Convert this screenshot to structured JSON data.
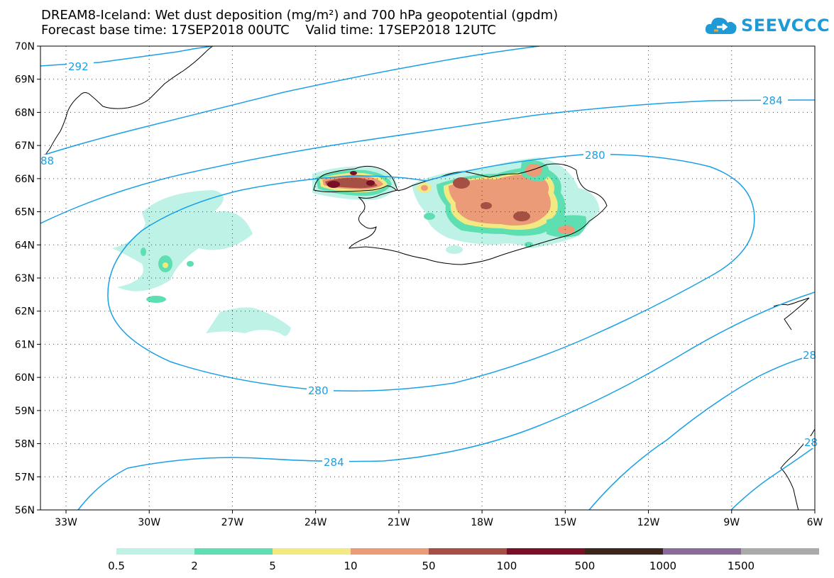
{
  "title": {
    "line1": "DREAM8-Iceland: Wet dust deposition (mg/m²) and 700 hPa geopotential (gpdm)",
    "line2": "Forecast base time: 17SEP2018 00UTC    Valid time: 17SEP2018 12UTC"
  },
  "logo": {
    "text": "SEEVCCC",
    "icon": "cloud-icon",
    "color": "#1e9bd7"
  },
  "map": {
    "lat_labels": [
      "70N",
      "69N",
      "68N",
      "67N",
      "66N",
      "65N",
      "64N",
      "63N",
      "62N",
      "61N",
      "60N",
      "59N",
      "58N",
      "57N",
      "56N"
    ],
    "lon_labels": [
      "33W",
      "30W",
      "27W",
      "24W",
      "21W",
      "18W",
      "15W",
      "12W",
      "9W",
      "6W"
    ],
    "contour_color": "#1aa0e6",
    "contour_labels": [
      "292",
      "88",
      "284",
      "280",
      "280",
      "284",
      "28",
      "28"
    ]
  },
  "colorbar": {
    "colors": [
      "#bff2e7",
      "#5ddfb2",
      "#f2e982",
      "#eb9b77",
      "#a64f45",
      "#7a0f28",
      "#3c2619",
      "#8a6b9a",
      "#aaaaaa"
    ],
    "labels": [
      "0.5",
      "2",
      "5",
      "10",
      "50",
      "100",
      "500",
      "1000",
      "1500"
    ]
  }
}
